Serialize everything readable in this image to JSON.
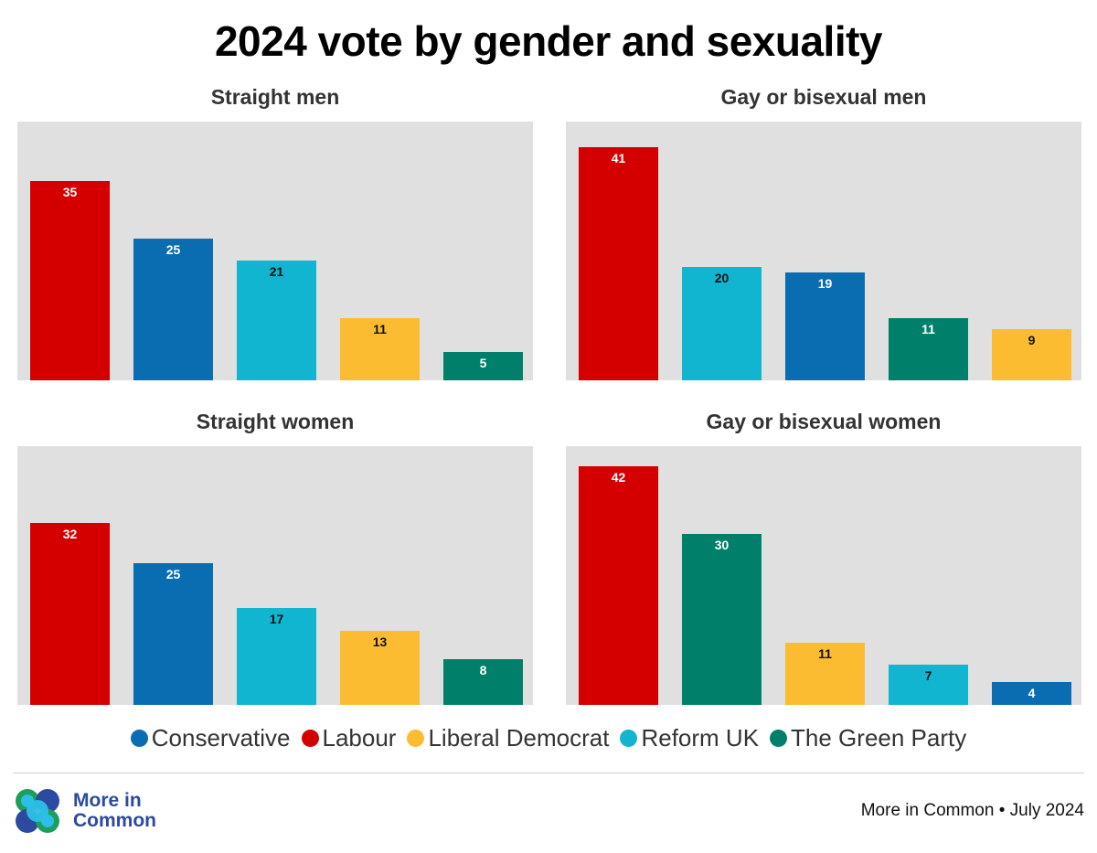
{
  "chart_data": {
    "type": "bar",
    "title": "2024 vote by gender and sexuality",
    "ylim": [
      0,
      45
    ],
    "panels": [
      {
        "title": "Straight men",
        "categories": [
          "Labour",
          "Conservative",
          "Reform UK",
          "Liberal Democrat",
          "The Green Party"
        ],
        "values": [
          35,
          25,
          21,
          11,
          5
        ]
      },
      {
        "title": "Gay or bisexual men",
        "categories": [
          "Labour",
          "Reform UK",
          "Conservative",
          "The Green Party",
          "Liberal Democrat"
        ],
        "values": [
          41,
          20,
          19,
          11,
          9
        ]
      },
      {
        "title": "Straight women",
        "categories": [
          "Labour",
          "Conservative",
          "Reform UK",
          "Liberal Democrat",
          "The Green Party"
        ],
        "values": [
          32,
          25,
          17,
          13,
          8
        ]
      },
      {
        "title": "Gay or bisexual women",
        "categories": [
          "Labour",
          "The Green Party",
          "Liberal Democrat",
          "Reform UK",
          "Conservative"
        ],
        "values": [
          42,
          30,
          11,
          7,
          4
        ]
      }
    ],
    "legend": [
      {
        "name": "Conservative",
        "color": "#0a6db2"
      },
      {
        "name": "Labour",
        "color": "#d40000"
      },
      {
        "name": "Liberal Democrat",
        "color": "#fbbc32"
      },
      {
        "name": "Reform UK",
        "color": "#12b5cf"
      },
      {
        "name": "The Green Party",
        "color": "#00806a"
      }
    ]
  },
  "branding": {
    "logo_line1": "More in",
    "logo_line2": "Common"
  },
  "source": "More in Common • July 2024"
}
